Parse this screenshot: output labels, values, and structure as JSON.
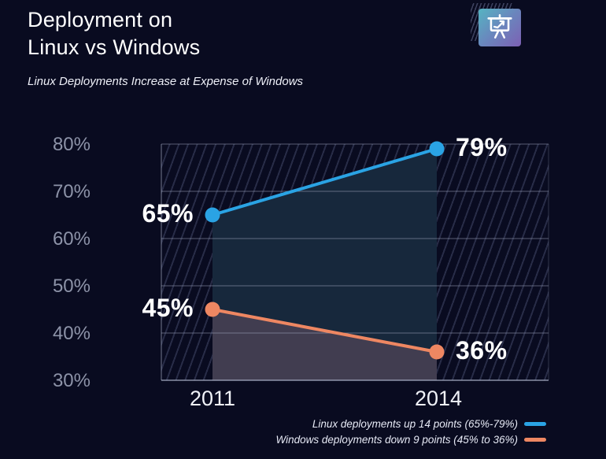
{
  "header": {
    "title": "Deployment on\nLinux vs Windows",
    "subtitle": "Linux Deployments Increase at Expense of Windows",
    "icon": "presentation-line-chart-icon"
  },
  "colors": {
    "background": "#090b20",
    "title_text": "#ffffff",
    "axis_tick_text": "#8d93a8",
    "x_tick_text": "#f0f2f8",
    "grid": "#aab2c8",
    "hatch": "#969fd2",
    "linux": "#2aa3e4",
    "windows": "#ee8762",
    "fill_between_lines": "#17283c",
    "fill_below_windows": "#413d50",
    "icon_gradient_start": "#55b4c2",
    "icon_gradient_end": "#7d60b4",
    "legend_text": "#e6e9f5"
  },
  "chart_data": {
    "type": "line",
    "title": "Deployment on Linux vs Windows",
    "subtitle": "Linux Deployments Increase at Expense of Windows",
    "x": [
      2011,
      2014
    ],
    "x_ticks": [
      "2011",
      "2014"
    ],
    "series": [
      {
        "name": "Linux",
        "values": [
          65,
          79
        ],
        "color": "#2aa3e4"
      },
      {
        "name": "Windows",
        "values": [
          45,
          36
        ],
        "color": "#ee8762"
      }
    ],
    "point_label_format": "{v}%",
    "ylim": [
      30,
      80
    ],
    "y_ticks": [
      80,
      70,
      60,
      50,
      40,
      30
    ],
    "y_tick_suffix": "%",
    "grid": true,
    "hatched_plot_background": true,
    "area_fill_between_series": true,
    "legend_position": "bottom-right",
    "legend": [
      {
        "label": "Linux deployments up 14 points (65%-79%)",
        "color": "#2aa3e4"
      },
      {
        "label": "Windows deployments down 9 points (45% to 36%)",
        "color": "#ee8762"
      }
    ]
  }
}
